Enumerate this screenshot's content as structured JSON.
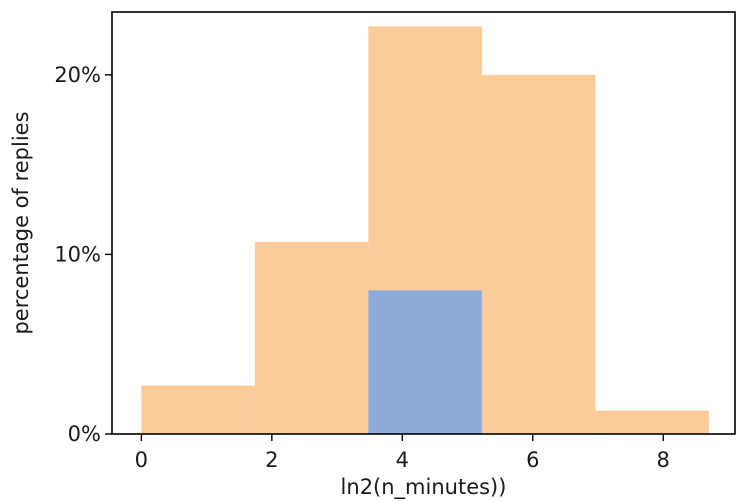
{
  "chart_data": {
    "type": "bar",
    "xlabel": "ln2(n_minutes))",
    "ylabel": "percentage of replies",
    "xlim": [
      -0.45,
      9.1
    ],
    "ylim": [
      0,
      23.5
    ],
    "x_ticks": [
      {
        "value": 0,
        "label": "0"
      },
      {
        "value": 2,
        "label": "2"
      },
      {
        "value": 4,
        "label": "4"
      },
      {
        "value": 6,
        "label": "6"
      },
      {
        "value": 8,
        "label": "8"
      }
    ],
    "y_ticks": [
      {
        "value": 0,
        "label": "0%"
      },
      {
        "value": 10,
        "label": "10%"
      },
      {
        "value": 20,
        "label": "20%"
      }
    ],
    "grid": false,
    "legend": "none",
    "series": [
      {
        "color": "#fbcc9a",
        "bins": [
          {
            "x0": 0.0,
            "x1": 1.74,
            "value": 2.7
          },
          {
            "x0": 1.74,
            "x1": 3.48,
            "value": 10.7
          },
          {
            "x0": 3.48,
            "x1": 5.22,
            "value": 22.7
          },
          {
            "x0": 5.22,
            "x1": 6.96,
            "value": 20.0
          },
          {
            "x0": 6.96,
            "x1": 8.7,
            "value": 1.3
          }
        ]
      },
      {
        "color": "#8eaad8",
        "bins": [
          {
            "x0": 3.48,
            "x1": 5.22,
            "value": 8.0
          }
        ]
      }
    ]
  }
}
